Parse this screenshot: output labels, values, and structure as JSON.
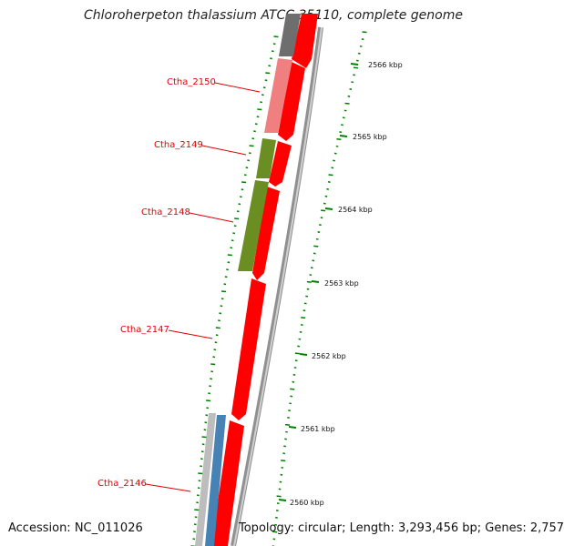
{
  "title": "Chloroherpeton thalassium ATCC 35110, complete genome",
  "footer": {
    "accession": "Accession: NC_011026",
    "topology": "Topology: circular; Length: 3,293,456 bp; Genes: 2,757"
  },
  "gene_labels": [
    "Ctha_2150",
    "Ctha_2149",
    "Ctha_2148",
    "Ctha_2147",
    "Ctha_2146"
  ],
  "kbp_labels": [
    "2566 kbp",
    "2565 kbp",
    "2564 kbp",
    "2563 kbp",
    "2562 kbp",
    "2561 kbp",
    "2560 kbp"
  ],
  "colors": {
    "forward_cds": "#ff0000",
    "cog_pink": "#f08080",
    "cog_olive": "#6b8e23",
    "cog_gray": "#6e6e6e",
    "cog_blue": "#4682b4",
    "backbone": "#808080",
    "tick": "#008000",
    "label": "#dd0000"
  }
}
